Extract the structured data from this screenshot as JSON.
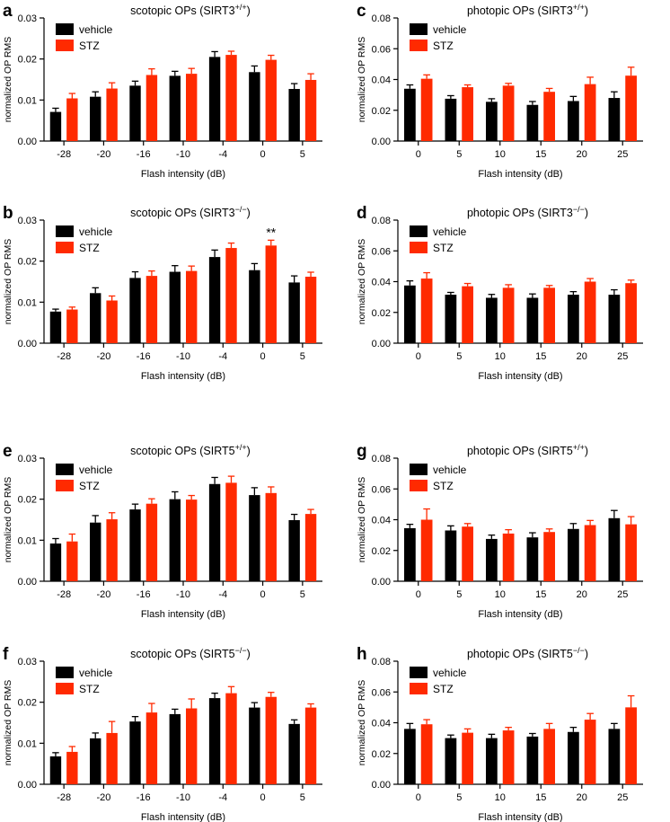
{
  "colors": {
    "vehicle": "#000000",
    "stz": "#ff2a00",
    "axis": "#000000"
  },
  "chart_data": [
    {
      "id": "a",
      "panel_label": "a",
      "type": "bar",
      "title": "scotopic OPs (SIRT3",
      "title_sup": "+/+",
      "title_end": ")",
      "xlabel": "Flash intensity (dB)",
      "ylabel": "normalized OP RMS",
      "ylim": [
        0,
        0.03
      ],
      "yticks": [
        "0.00",
        "0.01",
        "0.02",
        "0.03"
      ],
      "categories": [
        "-28",
        "-20",
        "-16",
        "-10",
        "-4",
        "0",
        "5"
      ],
      "legend": [
        "vehicle",
        "STZ"
      ],
      "legend_position": "top-left",
      "series": [
        {
          "name": "vehicle",
          "values": [
            0.0071,
            0.0108,
            0.0135,
            0.0159,
            0.0205,
            0.0168,
            0.0127
          ],
          "errors": [
            0.0009,
            0.0012,
            0.0011,
            0.0011,
            0.0013,
            0.0015,
            0.0013
          ]
        },
        {
          "name": "STZ",
          "values": [
            0.0104,
            0.0128,
            0.0161,
            0.0164,
            0.021,
            0.0198,
            0.0149
          ],
          "errors": [
            0.0012,
            0.0014,
            0.0015,
            0.0013,
            0.0009,
            0.0011,
            0.0015
          ]
        }
      ],
      "annotations": []
    },
    {
      "id": "b",
      "panel_label": "b",
      "type": "bar",
      "title": "scotopic OPs (SIRT3",
      "title_sup": "−/−",
      "title_end": ")",
      "xlabel": "Flash intensity (dB)",
      "ylabel": "normalized OP RMS",
      "ylim": [
        0,
        0.03
      ],
      "yticks": [
        "0.00",
        "0.01",
        "0.02",
        "0.03"
      ],
      "categories": [
        "-28",
        "-20",
        "-16",
        "-10",
        "-4",
        "0",
        "5"
      ],
      "legend": [
        "vehicle",
        "STZ"
      ],
      "legend_position": "top-left",
      "series": [
        {
          "name": "vehicle",
          "values": [
            0.0077,
            0.0122,
            0.0159,
            0.0174,
            0.021,
            0.0178,
            0.0148
          ],
          "errors": [
            0.0006,
            0.0013,
            0.0015,
            0.0015,
            0.0017,
            0.0016,
            0.0016
          ]
        },
        {
          "name": "STZ",
          "values": [
            0.0082,
            0.0104,
            0.0164,
            0.0176,
            0.0232,
            0.0238,
            0.0162
          ],
          "errors": [
            0.0006,
            0.0011,
            0.0012,
            0.0012,
            0.0012,
            0.0013,
            0.0011
          ]
        }
      ],
      "annotations": [
        {
          "text": "**",
          "category": "0",
          "series": "STZ"
        }
      ]
    },
    {
      "id": "c",
      "panel_label": "c",
      "type": "bar",
      "title": "photopic OPs (SIRT3",
      "title_sup": "+/+",
      "title_end": ")",
      "xlabel": "Flash intensity (dB)",
      "ylabel": "normalized OP RMS",
      "ylim": [
        0,
        0.08
      ],
      "yticks": [
        "0.00",
        "0.02",
        "0.04",
        "0.06",
        "0.08"
      ],
      "categories": [
        "0",
        "5",
        "10",
        "15",
        "20",
        "25"
      ],
      "legend": [
        "vehicle",
        "STZ"
      ],
      "legend_position": "top-left",
      "series": [
        {
          "name": "vehicle",
          "values": [
            0.034,
            0.0275,
            0.0255,
            0.0235,
            0.026,
            0.028
          ],
          "errors": [
            0.0025,
            0.002,
            0.002,
            0.0022,
            0.003,
            0.004
          ]
        },
        {
          "name": "STZ",
          "values": [
            0.0405,
            0.035,
            0.036,
            0.032,
            0.037,
            0.0425
          ],
          "errors": [
            0.0025,
            0.0015,
            0.0015,
            0.0022,
            0.0045,
            0.0055
          ]
        }
      ],
      "annotations": []
    },
    {
      "id": "d",
      "panel_label": "d",
      "type": "bar",
      "title": "photopic OPs (SIRT3",
      "title_sup": "−/−",
      "title_end": ")",
      "xlabel": "Flash intensity (dB)",
      "ylabel": "normalized OP RMS",
      "ylim": [
        0,
        0.08
      ],
      "yticks": [
        "0.00",
        "0.02",
        "0.04",
        "0.06",
        "0.08"
      ],
      "categories": [
        "0",
        "5",
        "10",
        "15",
        "20",
        "25"
      ],
      "legend": [
        "vehicle",
        "STZ"
      ],
      "legend_position": "top-left",
      "series": [
        {
          "name": "vehicle",
          "values": [
            0.0375,
            0.0315,
            0.0295,
            0.0295,
            0.0315,
            0.0315
          ],
          "errors": [
            0.003,
            0.0015,
            0.0022,
            0.0025,
            0.002,
            0.0032
          ]
        },
        {
          "name": "STZ",
          "values": [
            0.042,
            0.037,
            0.036,
            0.036,
            0.04,
            0.039
          ],
          "errors": [
            0.0038,
            0.0018,
            0.002,
            0.0015,
            0.002,
            0.002
          ]
        }
      ],
      "annotations": []
    },
    {
      "id": "e",
      "panel_label": "e",
      "type": "bar",
      "title": "scotopic OPs (SIRT5",
      "title_sup": "+/+",
      "title_end": ")",
      "xlabel": "Flash intensity (dB)",
      "ylabel": "normalized OP RMS",
      "ylim": [
        0,
        0.03
      ],
      "yticks": [
        "0.00",
        "0.01",
        "0.02",
        "0.03"
      ],
      "categories": [
        "-28",
        "-20",
        "-16",
        "-10",
        "-4",
        "0",
        "5"
      ],
      "legend": [
        "vehicle",
        "STZ"
      ],
      "legend_position": "top-left",
      "series": [
        {
          "name": "vehicle",
          "values": [
            0.0092,
            0.0143,
            0.0175,
            0.02,
            0.0237,
            0.021,
            0.0149
          ],
          "errors": [
            0.0012,
            0.0017,
            0.0013,
            0.0018,
            0.0016,
            0.0018,
            0.0014
          ]
        },
        {
          "name": "STZ",
          "values": [
            0.0097,
            0.0151,
            0.0189,
            0.0199,
            0.024,
            0.0215,
            0.0164
          ],
          "errors": [
            0.0018,
            0.0016,
            0.0012,
            0.001,
            0.0016,
            0.0015,
            0.0011
          ]
        }
      ],
      "annotations": []
    },
    {
      "id": "f",
      "panel_label": "f",
      "type": "bar",
      "title": "scotopic OPs (SIRT5",
      "title_sup": "−/−",
      "title_end": ")",
      "xlabel": "Flash intensity (dB)",
      "ylabel": "normalized OP RMS",
      "ylim": [
        0,
        0.03
      ],
      "yticks": [
        "0.00",
        "0.01",
        "0.02",
        "0.03"
      ],
      "categories": [
        "-28",
        "-20",
        "-16",
        "-10",
        "-4",
        "0",
        "5"
      ],
      "legend": [
        "vehicle",
        "STZ"
      ],
      "legend_position": "top-left",
      "series": [
        {
          "name": "vehicle",
          "values": [
            0.0068,
            0.0112,
            0.0153,
            0.0171,
            0.021,
            0.0187,
            0.0147
          ],
          "errors": [
            0.0009,
            0.0013,
            0.0012,
            0.0012,
            0.0012,
            0.0012,
            0.001
          ]
        },
        {
          "name": "STZ",
          "values": [
            0.0079,
            0.0125,
            0.0175,
            0.0185,
            0.0222,
            0.0213,
            0.0187
          ],
          "errors": [
            0.0013,
            0.0028,
            0.0022,
            0.0023,
            0.0016,
            0.0011,
            0.0009
          ]
        }
      ],
      "annotations": []
    },
    {
      "id": "g",
      "panel_label": "g",
      "type": "bar",
      "title": "photopic OPs (SIRT5",
      "title_sup": "+/+",
      "title_end": ")",
      "xlabel": "Flash intensity (dB)",
      "ylabel": "normalized OP RMS",
      "ylim": [
        0,
        0.08
      ],
      "yticks": [
        "0.00",
        "0.02",
        "0.04",
        "0.06",
        "0.08"
      ],
      "categories": [
        "0",
        "5",
        "10",
        "15",
        "20",
        "25"
      ],
      "legend": [
        "vehicle",
        "STZ"
      ],
      "legend_position": "top-left",
      "series": [
        {
          "name": "vehicle",
          "values": [
            0.0345,
            0.033,
            0.0275,
            0.0285,
            0.034,
            0.041
          ],
          "errors": [
            0.0025,
            0.003,
            0.0025,
            0.003,
            0.0035,
            0.005
          ]
        },
        {
          "name": "STZ",
          "values": [
            0.04,
            0.0355,
            0.031,
            0.032,
            0.0365,
            0.037
          ],
          "errors": [
            0.007,
            0.002,
            0.0025,
            0.002,
            0.003,
            0.005
          ]
        }
      ],
      "annotations": []
    },
    {
      "id": "h",
      "panel_label": "h",
      "type": "bar",
      "title": "photopic OPs (SIRT5",
      "title_sup": "−/−",
      "title_end": ")",
      "xlabel": "Flash intensity (dB)",
      "ylabel": "normalized OP RMS",
      "ylim": [
        0,
        0.08
      ],
      "yticks": [
        "0.00",
        "0.02",
        "0.04",
        "0.06",
        "0.08"
      ],
      "categories": [
        "0",
        "5",
        "10",
        "15",
        "20",
        "25"
      ],
      "legend": [
        "vehicle",
        "STZ"
      ],
      "legend_position": "top-left",
      "series": [
        {
          "name": "vehicle",
          "values": [
            0.036,
            0.03,
            0.03,
            0.031,
            0.034,
            0.036
          ],
          "errors": [
            0.0035,
            0.002,
            0.0025,
            0.002,
            0.003,
            0.0035
          ]
        },
        {
          "name": "STZ",
          "values": [
            0.039,
            0.0335,
            0.035,
            0.036,
            0.042,
            0.05
          ],
          "errors": [
            0.003,
            0.0025,
            0.002,
            0.0035,
            0.004,
            0.0075
          ]
        }
      ],
      "annotations": []
    }
  ]
}
